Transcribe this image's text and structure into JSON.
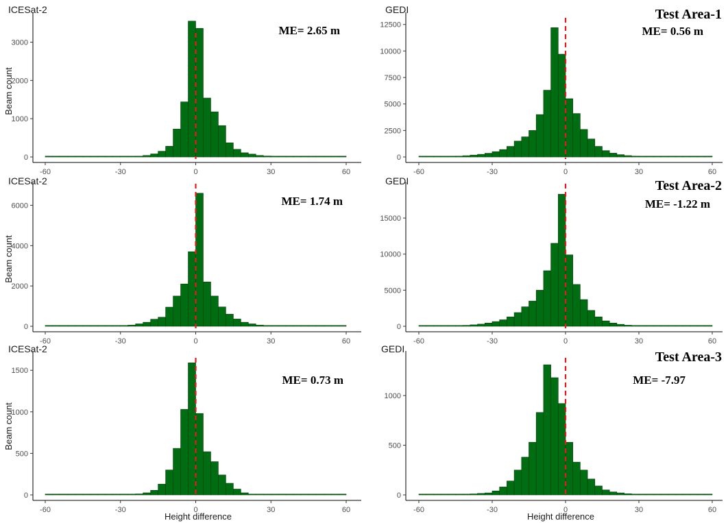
{
  "colors": {
    "bar_fill": "#006d12",
    "bar_edge": "#0b3d0b",
    "ref_line": "#e41a1c"
  },
  "ylabel": "Beam count",
  "xlabel": "Height difference",
  "x_ticks": [
    -60,
    -30,
    0,
    30,
    60
  ],
  "chart_data": [
    {
      "type": "bar",
      "title": "ICESat-2",
      "annotation": "ME= 2.65 m",
      "test_area": "",
      "ylabel": "Beam count",
      "xlabel": "",
      "xlim": [
        -60,
        60
      ],
      "ylim": [
        0,
        3600
      ],
      "y_ticks": [
        0,
        1000,
        2000,
        3000
      ],
      "bin_width": 3,
      "ref_line_x": 0,
      "bins": [
        -60,
        -57,
        -54,
        -51,
        -48,
        -45,
        -42,
        -39,
        -36,
        -33,
        -30,
        -27,
        -24,
        -21,
        -18,
        -15,
        -12,
        -9,
        -6,
        -3,
        0,
        3,
        6,
        9,
        12,
        15,
        18,
        21,
        24,
        27,
        30,
        33,
        36,
        39,
        42,
        45,
        48,
        51,
        54,
        57
      ],
      "values": [
        4,
        4,
        4,
        4,
        4,
        4,
        4,
        5,
        6,
        8,
        10,
        15,
        22,
        40,
        80,
        150,
        280,
        730,
        1440,
        3550,
        3360,
        1540,
        1180,
        820,
        370,
        200,
        110,
        75,
        40,
        25,
        15,
        10,
        8,
        6,
        5,
        4,
        4,
        4,
        4,
        4
      ]
    },
    {
      "type": "bar",
      "title": "GEDI",
      "annotation": "ME= 0.56 m",
      "test_area": "Test Area-1",
      "ylabel": "",
      "xlabel": "",
      "xlim": [
        -60,
        60
      ],
      "ylim": [
        0,
        13000
      ],
      "y_ticks": [
        0,
        2500,
        5000,
        7500,
        10000,
        12500
      ],
      "bin_width": 3,
      "ref_line_x": 0,
      "bins": [
        -60,
        -57,
        -54,
        -51,
        -48,
        -45,
        -42,
        -39,
        -36,
        -33,
        -30,
        -27,
        -24,
        -21,
        -18,
        -15,
        -12,
        -9,
        -6,
        -3,
        0,
        3,
        6,
        9,
        12,
        15,
        18,
        21,
        24,
        27,
        30,
        33,
        36,
        39,
        42,
        45,
        48,
        51,
        54,
        57
      ],
      "values": [
        10,
        15,
        20,
        30,
        50,
        80,
        120,
        180,
        250,
        350,
        500,
        700,
        1000,
        1500,
        1900,
        2500,
        4000,
        6300,
        12200,
        9700,
        5500,
        4100,
        2600,
        1700,
        1000,
        600,
        360,
        220,
        130,
        80,
        50,
        30,
        20,
        15,
        10,
        8,
        6,
        5,
        4,
        4
      ]
    },
    {
      "type": "bar",
      "title": "ICESat-2",
      "annotation": "ME= 1.74 m",
      "test_area": "",
      "ylabel": "Beam count",
      "xlabel": "",
      "xlim": [
        -60,
        60
      ],
      "ylim": [
        0,
        6800
      ],
      "y_ticks": [
        0,
        2000,
        4000,
        6000
      ],
      "bin_width": 3,
      "ref_line_x": 0,
      "bins": [
        -60,
        -57,
        -54,
        -51,
        -48,
        -45,
        -42,
        -39,
        -36,
        -33,
        -30,
        -27,
        -24,
        -21,
        -18,
        -15,
        -12,
        -9,
        -6,
        -3,
        0,
        3,
        6,
        9,
        12,
        15,
        18,
        21,
        24,
        27,
        30,
        33,
        36,
        39,
        42,
        45,
        48,
        51,
        54,
        57
      ],
      "values": [
        5,
        5,
        5,
        5,
        5,
        6,
        8,
        10,
        15,
        20,
        30,
        60,
        120,
        200,
        350,
        450,
        950,
        1500,
        2100,
        3700,
        6600,
        2200,
        1500,
        960,
        600,
        360,
        200,
        120,
        60,
        35,
        20,
        12,
        8,
        6,
        5,
        5,
        5,
        5,
        5,
        5
      ]
    },
    {
      "type": "bar",
      "title": "GEDI",
      "annotation": "ME= -1.22 m",
      "test_area": "Test Area-2",
      "ylabel": "",
      "xlabel": "",
      "xlim": [
        -60,
        60
      ],
      "ylim": [
        0,
        19000
      ],
      "y_ticks": [
        0,
        5000,
        10000,
        15000
      ],
      "bin_width": 3,
      "ref_line_x": 0,
      "bins": [
        -60,
        -57,
        -54,
        -51,
        -48,
        -45,
        -42,
        -39,
        -36,
        -33,
        -30,
        -27,
        -24,
        -21,
        -18,
        -15,
        -12,
        -9,
        -6,
        -3,
        0,
        3,
        6,
        9,
        12,
        15,
        18,
        21,
        24,
        27,
        30,
        33,
        36,
        39,
        42,
        45,
        48,
        51,
        54,
        57
      ],
      "values": [
        15,
        20,
        30,
        40,
        60,
        90,
        130,
        200,
        300,
        450,
        650,
        900,
        1300,
        1900,
        2700,
        3500,
        5000,
        7700,
        11500,
        18300,
        9900,
        5800,
        3700,
        2200,
        1300,
        750,
        450,
        270,
        150,
        90,
        55,
        35,
        25,
        15,
        10,
        8,
        6,
        5,
        5,
        5
      ]
    },
    {
      "type": "bar",
      "title": "ICESat-2",
      "annotation": "ME= 0.73 m",
      "test_area": "",
      "ylabel": "Beam count",
      "xlabel": "Height difference",
      "xlim": [
        -60,
        60
      ],
      "ylim": [
        0,
        1650
      ],
      "y_ticks": [
        0,
        500,
        1000,
        1500
      ],
      "bin_width": 3,
      "ref_line_x": 0,
      "bins": [
        -60,
        -57,
        -54,
        -51,
        -48,
        -45,
        -42,
        -39,
        -36,
        -33,
        -30,
        -27,
        -24,
        -21,
        -18,
        -15,
        -12,
        -9,
        -6,
        -3,
        0,
        3,
        6,
        9,
        12,
        15,
        18,
        21,
        24,
        27,
        30,
        33,
        36,
        39,
        42,
        45,
        48,
        51,
        54,
        57
      ],
      "values": [
        1,
        1,
        1,
        1,
        1,
        1,
        1,
        1,
        2,
        2,
        3,
        5,
        12,
        25,
        55,
        130,
        300,
        560,
        1030,
        1590,
        980,
        520,
        400,
        240,
        140,
        70,
        25,
        10,
        5,
        3,
        2,
        1,
        1,
        1,
        1,
        1,
        1,
        1,
        1,
        1
      ]
    },
    {
      "type": "bar",
      "title": "GEDI",
      "annotation": "ME= -7.97",
      "test_area": "Test Area-3",
      "ylabel": "",
      "xlabel": "Height difference",
      "xlim": [
        -60,
        60
      ],
      "ylim": [
        0,
        1380
      ],
      "y_ticks": [
        0,
        500,
        1000
      ],
      "bin_width": 3,
      "ref_line_x": 0,
      "bins": [
        -60,
        -57,
        -54,
        -51,
        -48,
        -45,
        -42,
        -39,
        -36,
        -33,
        -30,
        -27,
        -24,
        -21,
        -18,
        -15,
        -12,
        -9,
        -6,
        -3,
        0,
        3,
        6,
        9,
        12,
        15,
        18,
        21,
        24,
        27,
        30,
        33,
        36,
        39,
        42,
        45,
        48,
        51,
        54,
        57
      ],
      "values": [
        2,
        2,
        3,
        4,
        5,
        6,
        8,
        10,
        15,
        20,
        40,
        80,
        140,
        250,
        380,
        530,
        830,
        1310,
        1180,
        920,
        530,
        330,
        250,
        160,
        90,
        50,
        30,
        20,
        12,
        8,
        5,
        4,
        3,
        2,
        2,
        2,
        1,
        1,
        1,
        1
      ]
    }
  ]
}
